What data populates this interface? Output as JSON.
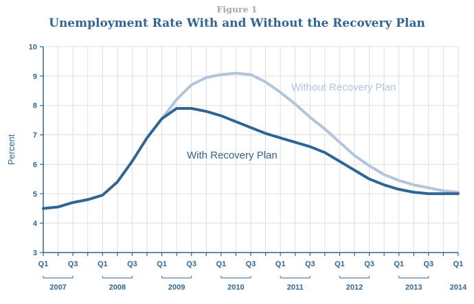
{
  "figure_label": "Figure 1",
  "chart_data": {
    "type": "line",
    "title": "Unemployment Rate With and Without the Recovery Plan",
    "xlabel": "",
    "ylabel": "Percent",
    "ylim": [
      3,
      10
    ],
    "yticks": [
      3,
      4,
      5,
      6,
      7,
      8,
      9,
      10
    ],
    "grid": true,
    "x_tick_labels": [
      "Q1",
      "Q3",
      "Q1",
      "Q3",
      "Q1",
      "Q3",
      "Q1",
      "Q3",
      "Q1",
      "Q3",
      "Q1",
      "Q3",
      "Q1",
      "Q3",
      "Q1"
    ],
    "years": [
      "2007",
      "2008",
      "2009",
      "2010",
      "2011",
      "2012",
      "2013",
      "2014"
    ],
    "x_quarters": [
      "2007 Q1",
      "2007 Q2",
      "2007 Q3",
      "2007 Q4",
      "2008 Q1",
      "2008 Q2",
      "2008 Q3",
      "2008 Q4",
      "2009 Q1",
      "2009 Q2",
      "2009 Q3",
      "2009 Q4",
      "2010 Q1",
      "2010 Q2",
      "2010 Q3",
      "2010 Q4",
      "2011 Q1",
      "2011 Q2",
      "2011 Q3",
      "2011 Q4",
      "2012 Q1",
      "2012 Q2",
      "2012 Q3",
      "2012 Q4",
      "2013 Q1",
      "2013 Q2",
      "2013 Q3",
      "2013 Q4",
      "2014 Q1"
    ],
    "series": [
      {
        "name": "With Recovery Plan",
        "color": "#2f6592",
        "values": [
          4.5,
          4.55,
          4.7,
          4.8,
          4.95,
          5.4,
          6.1,
          6.9,
          7.55,
          7.9,
          7.9,
          7.8,
          7.65,
          7.45,
          7.25,
          7.05,
          6.9,
          6.75,
          6.6,
          6.4,
          6.1,
          5.8,
          5.5,
          5.3,
          5.15,
          5.05,
          5.0,
          5.0,
          5.0
        ]
      },
      {
        "name": "Without Recovery Plan",
        "color": "#b2c4db",
        "values": [
          null,
          null,
          null,
          null,
          null,
          null,
          null,
          null,
          7.55,
          8.2,
          8.7,
          8.95,
          9.05,
          9.1,
          9.05,
          8.8,
          8.45,
          8.05,
          7.6,
          7.2,
          6.75,
          6.3,
          5.95,
          5.65,
          5.45,
          5.3,
          5.2,
          5.1,
          5.05
        ]
      }
    ]
  }
}
